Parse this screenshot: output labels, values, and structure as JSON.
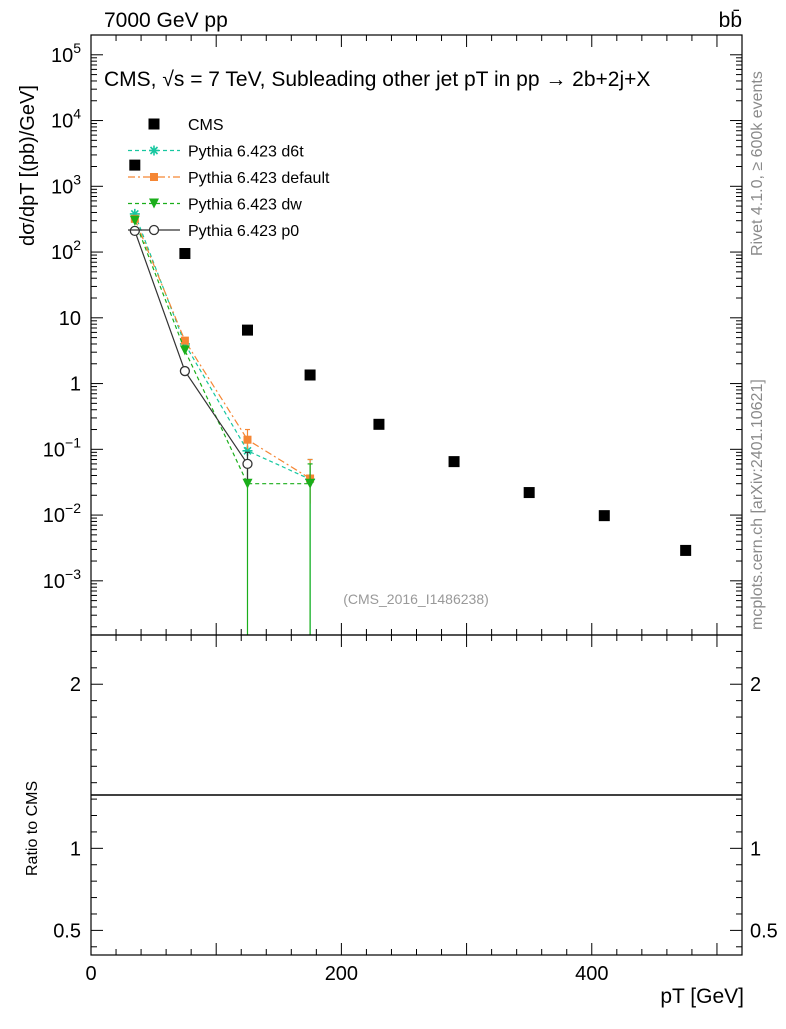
{
  "header": {
    "left": "7000 GeV pp",
    "right": "bb̄"
  },
  "side_labels": {
    "rivet": "Rivet 4.1.0, ≥ 600k events",
    "mcplots": "mcplots.cern.ch [arXiv:2401.10621]"
  },
  "watermark": "(CMS_2016_I1486238)",
  "chart_data": {
    "type": "scatter",
    "title": "CMS, √s = 7 TeV, Subleading other jet pT in pp → 2b+2j+X",
    "xlabel": "pT [GeV]",
    "ylabel": "dσ/dpT [(pb)/GeV]",
    "ratio_ylabel": "Ratio to CMS",
    "xlim": [
      0,
      520
    ],
    "ylim": [
      0.00015,
      200000
    ],
    "yscale": "log",
    "ratio_ylim": [
      0.35,
      2.3
    ],
    "x_ticks": [
      {
        "v": 0,
        "label": "0"
      },
      {
        "v": 200,
        "label": "200"
      },
      {
        "v": 400,
        "label": "400"
      }
    ],
    "y_ticks": [
      {
        "v": 0.001,
        "label": "10^-3"
      },
      {
        "v": 0.01,
        "label": "10^-2"
      },
      {
        "v": 0.1,
        "label": "10^-1"
      },
      {
        "v": 1,
        "label": "1"
      },
      {
        "v": 10,
        "label": "10"
      },
      {
        "v": 100,
        "label": "10^2"
      },
      {
        "v": 1000,
        "label": "10^3"
      },
      {
        "v": 10000,
        "label": "10^4"
      },
      {
        "v": 100000,
        "label": "10^5"
      }
    ],
    "ratio_ticks": [
      {
        "v": 0.5,
        "label": "0.5"
      },
      {
        "v": 1,
        "label": "1"
      },
      {
        "v": 2,
        "label": "2"
      }
    ],
    "legend": {
      "position": "top-left"
    },
    "series": [
      {
        "name": "CMS",
        "color": "#000000",
        "marker": "square",
        "line": "none",
        "points": [
          {
            "x": 35,
            "y": 2100
          },
          {
            "x": 75,
            "y": 95
          },
          {
            "x": 125,
            "y": 6.5
          },
          {
            "x": 175,
            "y": 1.35
          },
          {
            "x": 230,
            "y": 0.24
          },
          {
            "x": 290,
            "y": 0.065
          },
          {
            "x": 350,
            "y": 0.022
          },
          {
            "x": 410,
            "y": 0.0098
          },
          {
            "x": 475,
            "y": 0.0029
          }
        ]
      },
      {
        "name": "Pythia 6.423 d6t",
        "color": "#17c7a0",
        "marker": "star",
        "line": "dashed",
        "points": [
          {
            "x": 35,
            "y": 380
          },
          {
            "x": 75,
            "y": 4.0
          },
          {
            "x": 125,
            "y": 0.095,
            "err": [
              0.07,
              0.13
            ]
          },
          {
            "x": 175,
            "y": 0.035,
            "err": [
              0.0001,
              0.07
            ]
          }
        ]
      },
      {
        "name": "Pythia 6.423 default",
        "color": "#f58634",
        "marker": "square",
        "line": "dashdot",
        "points": [
          {
            "x": 35,
            "y": 320
          },
          {
            "x": 75,
            "y": 4.5
          },
          {
            "x": 125,
            "y": 0.14,
            "err": [
              0.1,
              0.2
            ]
          },
          {
            "x": 175,
            "y": 0.036,
            "err": [
              0.015,
              0.07
            ]
          }
        ]
      },
      {
        "name": "Pythia 6.423 dw",
        "color": "#1aae1a",
        "marker": "triangle-down",
        "line": "dashed",
        "points": [
          {
            "x": 35,
            "y": 300
          },
          {
            "x": 75,
            "y": 3.2
          },
          {
            "x": 125,
            "y": 0.03,
            "err": [
              0.0001,
              0.06
            ]
          },
          {
            "x": 175,
            "y": 0.03,
            "err": [
              0.0001,
              0.06
            ]
          }
        ]
      },
      {
        "name": "Pythia 6.423 p0",
        "color": "#333333",
        "marker": "circle-open",
        "line": "solid",
        "points": [
          {
            "x": 35,
            "y": 210
          },
          {
            "x": 75,
            "y": 1.55
          },
          {
            "x": 125,
            "y": 0.06,
            "err": [
              0.035,
              0.09
            ]
          }
        ]
      }
    ]
  }
}
